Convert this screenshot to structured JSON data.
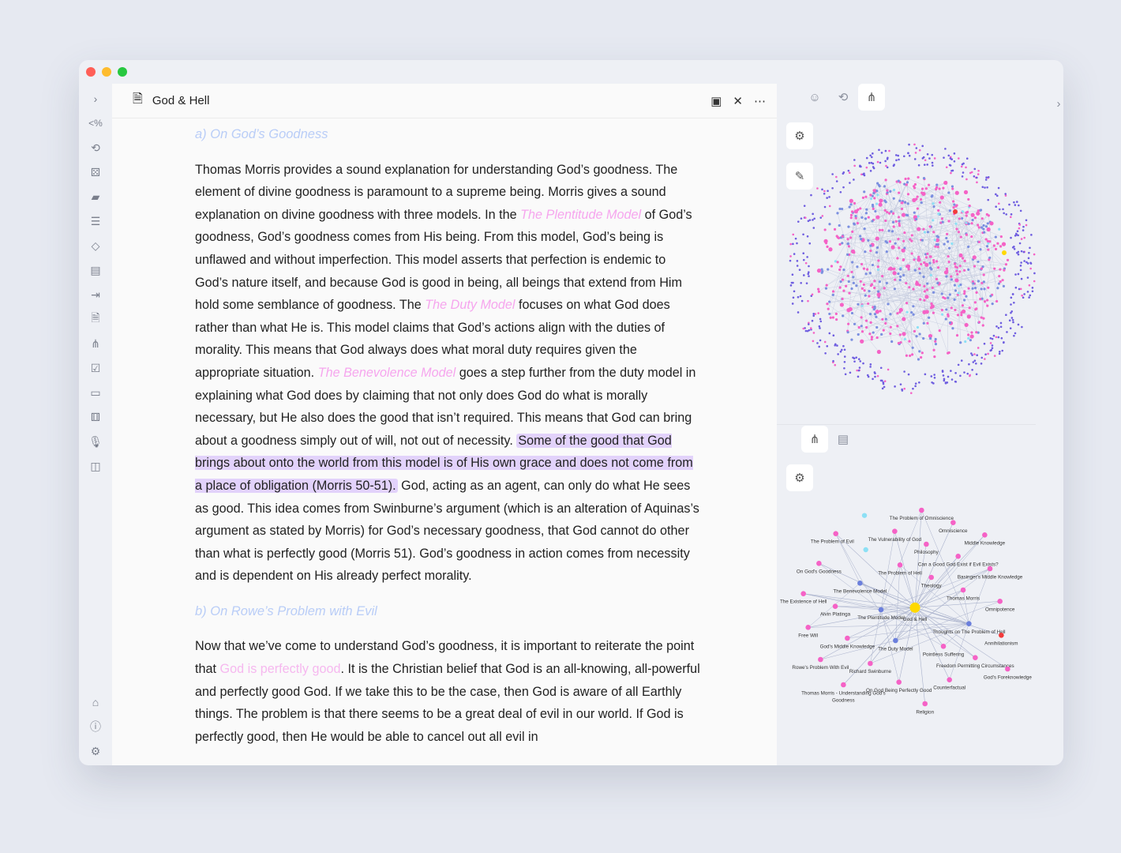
{
  "window": {
    "controls": {
      "close": "#ff5f57",
      "minimize": "#febc2e",
      "maximize": "#28c840"
    }
  },
  "ribbon": {
    "top_icons": [
      "chevron-right-icon",
      "code-percent-icon",
      "link-sync-icon",
      "dice-icon",
      "cards-icon",
      "list-icon",
      "paint-bucket-icon",
      "archive-icon",
      "login-icon",
      "file-search-icon",
      "graph-icon",
      "calendar-check-icon",
      "slides-icon",
      "dice-icon",
      "microphone-icon",
      "sidebar-layout-icon"
    ],
    "bottom_icons": [
      "vault-icon",
      "help-icon",
      "settings-icon"
    ]
  },
  "tab": {
    "title": "God & Hell",
    "icon": "file-icon"
  },
  "doc": {
    "h1": "a) On God’s Goodness",
    "p1": {
      "t1": "Thomas Morris provides a sound explanation for understanding God’s goodness. The element of divine goodness is paramount to a supreme being. Morris gives a sound explanation on divine goodness with three models. In the ",
      "l1": "The Plentitude Model",
      "t2": " of God’s goodness, God’s goodness comes from His being. From this model, God’s being is unflawed and without imperfection. This model asserts that perfection is endemic to God’s nature itself, and because God is good in being, all beings that extend from Him hold some semblance of goodness. The ",
      "l2": "The Duty Model",
      "t3": " focuses on what God does rather than what He is. This model claims that God’s actions align with the duties of morality. This means that God always does what moral duty requires given the appropriate situation. ",
      "l3": "The Benevolence Model",
      "t4": " goes a step further from the duty model in explaining what God does by claiming that not only does God do what is morally necessary, but He also does the good that isn’t required. This means that God can bring about a goodness simply out of will, not out of necessity. ",
      "hl": "Some of the good that God brings about onto the world from this model is of His own grace and does not come from a place of obligation (Morris 50-51).",
      "t5": " God, acting as an agent, can only do what He sees as good. This idea comes from Swinburne’s argument (which is an alteration of Aquinas’s argument as stated by Morris) for God’s necessary goodness, that God cannot do other than what is perfectly good (Morris 51). God’s goodness in action comes from necessity and is dependent on His already perfect morality."
    },
    "h2": "b) On Rowe’s Problem with Evil",
    "p2": {
      "t1": "Now that we’ve come to understand God’s goodness, it is important to reiterate the point that ",
      "l1": "God is perfectly good",
      "t2": ". It is the Christian belief that God is an all-knowing, all-powerful and perfectly good God. If we take this to be the case, then God is aware of all Earthly things. The problem is that there seems to be a great deal of evil in our world. If God is perfectly good, then He would be able to cancel out all evil in"
    }
  },
  "local_graph": {
    "nodes": [
      "The Problem of Omniscience",
      "Omniscience",
      "Middle Knowledge",
      "The Problem of Evil",
      "The Vulnerability of God",
      "Philosophy",
      "Can a Good God Exist if Evil Exists?",
      "On God's Goodness",
      "The Problem of Hell",
      "Basinger's Middle Knowledge",
      "Theology",
      "The Benevolence Model",
      "Thomas Morris",
      "The Existence of Hell",
      "Omnipotence",
      "Alvin Platinga",
      "The Plentitude Model",
      "God & Hell",
      "Thoughts on The Problem of Hell",
      "Annihilationism",
      "Free Will",
      "God's Middle Knowledge",
      "The Duty Model",
      "Pointless Suffering",
      "Rowe's Problem With Evil",
      "Freedom Permitting Circumstances",
      "Richard Swinburne",
      "God's Foreknowledge",
      "Thomas Morris - Understanding God's",
      "On God Being Perfectly Good",
      "Counterfactual",
      "Religion"
    ],
    "extra_label": "Goodness"
  },
  "colors": {
    "note": "#f562c6",
    "model": "#6b7fdc",
    "current": "#ffd900",
    "unresolved": "#f23a3a",
    "attachment": "#8de0f5",
    "edge": "#aab2cc"
  }
}
